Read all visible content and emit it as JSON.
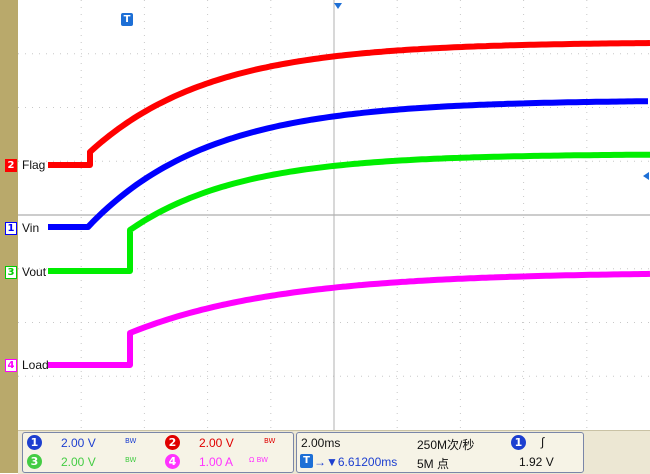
{
  "colors": {
    "ch1": "#0000ff",
    "ch2": "#ff0000",
    "ch3": "#00ee00",
    "ch4": "#ff00ff",
    "grid": "#c8c8c8",
    "bg": "#ffffff",
    "bezel": "#b9a96b"
  },
  "channels": [
    {
      "num": "2",
      "label": "Flag"
    },
    {
      "num": "1",
      "label": "Vin"
    },
    {
      "num": "3",
      "label": "Vout"
    },
    {
      "num": "4",
      "label": "Load"
    }
  ],
  "trigger_marker": "T",
  "settings": {
    "ch1": {
      "num": "1",
      "scale": "2.00 V",
      "suffix": "BW"
    },
    "ch2": {
      "num": "2",
      "scale": "2.00 V",
      "suffix": "BW"
    },
    "ch3": {
      "num": "3",
      "scale": "2.00 V",
      "suffix": "BW"
    },
    "ch4": {
      "num": "4",
      "scale": "1.00 A",
      "suffix": "Ω BW"
    }
  },
  "timebase": {
    "scale": "2.00ms",
    "sample_rate": "250M次/秒",
    "position": "→▼6.61200ms",
    "record_length": "5M 点"
  },
  "trigger": {
    "source": "1",
    "slope": "∫",
    "level": "1.92 V"
  }
}
